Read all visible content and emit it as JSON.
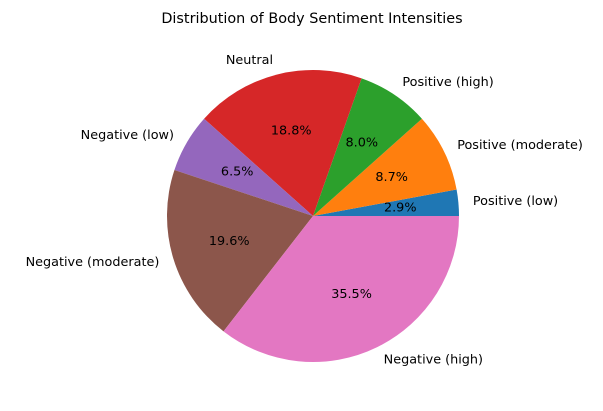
{
  "chart_data": {
    "type": "pie",
    "title": "Distribution of Body Sentiment Intensities",
    "start_angle_deg": 0,
    "direction": "counterclockwise",
    "slices": [
      {
        "label": "Positive (low)",
        "value": 2.9,
        "pct_label": "2.9%",
        "color": "#1f77b4"
      },
      {
        "label": "Positive (moderate)",
        "value": 8.7,
        "pct_label": "8.7%",
        "color": "#ff7f0e"
      },
      {
        "label": "Positive (high)",
        "value": 8.0,
        "pct_label": "8.0%",
        "color": "#2ca02c"
      },
      {
        "label": "Neutral",
        "value": 18.8,
        "pct_label": "18.8%",
        "color": "#d62728"
      },
      {
        "label": "Negative (low)",
        "value": 6.5,
        "pct_label": "6.5%",
        "color": "#9467bd"
      },
      {
        "label": "Negative (moderate)",
        "value": 19.6,
        "pct_label": "19.6%",
        "color": "#8c564b"
      },
      {
        "label": "Negative (high)",
        "value": 35.5,
        "pct_label": "35.5%",
        "color": "#e377c2"
      }
    ]
  }
}
